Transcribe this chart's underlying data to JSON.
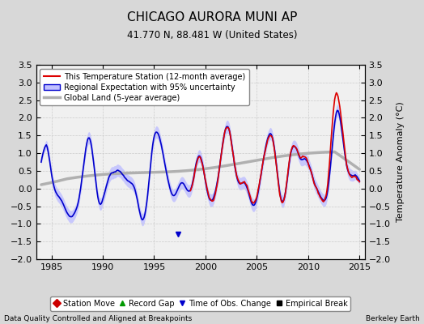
{
  "title": "CHICAGO AURORA MUNI AP",
  "subtitle": "41.770 N, 88.481 W (United States)",
  "ylabel": "Temperature Anomaly (°C)",
  "xlabel_left": "Data Quality Controlled and Aligned at Breakpoints",
  "xlabel_right": "Berkeley Earth",
  "ylim": [
    -2.0,
    3.5
  ],
  "xlim": [
    1983.5,
    2015.5
  ],
  "yticks": [
    -2,
    -1.5,
    -1,
    -0.5,
    0,
    0.5,
    1,
    1.5,
    2,
    2.5,
    3,
    3.5
  ],
  "xticks": [
    1985,
    1990,
    1995,
    2000,
    2005,
    2010,
    2015
  ],
  "bg_color": "#d8d8d8",
  "plot_bg_color": "#f0f0f0",
  "red_color": "#dd0000",
  "blue_color": "#0000cc",
  "blue_fill_color": "#c0c0ff",
  "gray_color": "#b0b0b0",
  "legend_items": [
    "This Temperature Station (12-month average)",
    "Regional Expectation with 95% uncertainty",
    "Global Land (5-year average)"
  ],
  "marker_legend": [
    {
      "label": "Station Move",
      "color": "#cc0000",
      "marker": "D"
    },
    {
      "label": "Record Gap",
      "color": "#009900",
      "marker": "^"
    },
    {
      "label": "Time of Obs. Change",
      "color": "#0000cc",
      "marker": "v"
    },
    {
      "label": "Empirical Break",
      "color": "#000000",
      "marker": "s"
    }
  ],
  "obs_change_x": 1997.3,
  "obs_change_y": -1.3,
  "station_start_year": 1998.5
}
